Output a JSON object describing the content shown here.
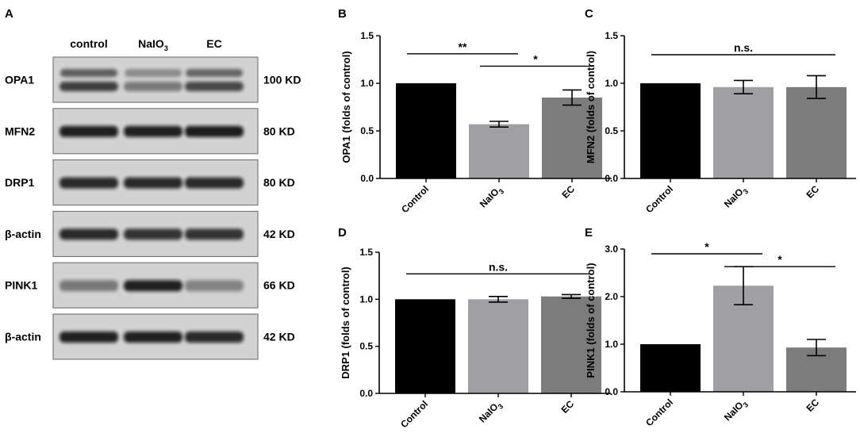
{
  "panels": {
    "A": {
      "label": "A",
      "lanes": [
        {
          "main": "control",
          "sub": ""
        },
        {
          "main": "NaIO",
          "sub": "3"
        },
        {
          "main": "EC",
          "sub": ""
        }
      ],
      "blots": [
        {
          "protein": "OPA1",
          "size": "100 KD",
          "style": "double",
          "intensity": [
            0.75,
            0.45,
            0.7
          ]
        },
        {
          "protein": "MFN2",
          "size": "80 KD",
          "style": "single",
          "intensity": [
            0.9,
            0.9,
            0.92
          ]
        },
        {
          "protein": "DRP1",
          "size": "80 KD",
          "style": "single",
          "intensity": [
            0.85,
            0.85,
            0.85
          ]
        },
        {
          "protein": "β-actin",
          "size": "42 KD",
          "style": "single",
          "intensity": [
            0.85,
            0.8,
            0.8
          ]
        },
        {
          "protein": "PINK1",
          "size": "66 KD",
          "style": "single",
          "intensity": [
            0.45,
            0.9,
            0.4
          ]
        },
        {
          "protein": "β-actin",
          "size": "42 KD",
          "style": "single",
          "intensity": [
            0.9,
            0.9,
            0.85
          ]
        }
      ]
    }
  },
  "colors": {
    "bars": [
      "#000000",
      "#a0a0a4",
      "#7c7c7c"
    ],
    "axis": "#000000"
  },
  "chart_data": [
    {
      "panel": "B",
      "type": "bar",
      "categories": [
        "Control",
        "NaIO3",
        "EC"
      ],
      "category_labels": [
        {
          "main": "Control",
          "sub": ""
        },
        {
          "main": "NaIO",
          "sub": "3"
        },
        {
          "main": "EC",
          "sub": ""
        }
      ],
      "values": [
        1.0,
        0.57,
        0.85
      ],
      "errors": [
        0,
        0.03,
        0.08
      ],
      "ylabel": "OPA1 (folds of control)",
      "ylim": [
        0,
        1.5
      ],
      "yticks": [
        "0.0",
        "0.5",
        "1.0",
        "1.5"
      ],
      "significance": [
        {
          "from": 0,
          "to": 1,
          "label": "**",
          "y": 1.31
        },
        {
          "from": 1,
          "to": 2,
          "label": "*",
          "y": 1.18
        }
      ]
    },
    {
      "panel": "C",
      "type": "bar",
      "categories": [
        "Control",
        "NaIO3",
        "EC"
      ],
      "category_labels": [
        {
          "main": "Control",
          "sub": ""
        },
        {
          "main": "NaIO",
          "sub": "3"
        },
        {
          "main": "EC",
          "sub": ""
        }
      ],
      "values": [
        1.0,
        0.96,
        0.96
      ],
      "errors": [
        0,
        0.07,
        0.12
      ],
      "ylabel": "MFN2 (folds of control)",
      "ylim": [
        0,
        1.5
      ],
      "yticks": [
        "0.0",
        "0.5",
        "1.0",
        "1.5"
      ],
      "significance": [
        {
          "from": 0,
          "to": 2,
          "label": "n.s.",
          "y": 1.3
        }
      ]
    },
    {
      "panel": "D",
      "type": "bar",
      "categories": [
        "Control",
        "NaIO3",
        "EC"
      ],
      "category_labels": [
        {
          "main": "Control",
          "sub": ""
        },
        {
          "main": "NaIO",
          "sub": "3"
        },
        {
          "main": "EC",
          "sub": ""
        }
      ],
      "values": [
        1.0,
        1.0,
        1.03
      ],
      "errors": [
        0,
        0.03,
        0.02
      ],
      "ylabel": "DRP1 (folds of control)",
      "ylim": [
        0,
        1.5
      ],
      "yticks": [
        "0.0",
        "0.5",
        "1.0",
        "1.5"
      ],
      "significance": [
        {
          "from": 0,
          "to": 2,
          "label": "n.s.",
          "y": 1.27
        }
      ]
    },
    {
      "panel": "E",
      "type": "bar",
      "categories": [
        "Control",
        "NaIO3",
        "EC"
      ],
      "category_labels": [
        {
          "main": "Control",
          "sub": ""
        },
        {
          "main": "NaIO",
          "sub": "3"
        },
        {
          "main": "EC",
          "sub": ""
        }
      ],
      "values": [
        1.0,
        2.23,
        0.93
      ],
      "errors": [
        0,
        0.4,
        0.17
      ],
      "ylabel": "PINK1 (folds of control)",
      "ylim": [
        0,
        3.0
      ],
      "yticks": [
        "0.0",
        "1.0",
        "2.0",
        "3.0"
      ],
      "significance": [
        {
          "from": 0,
          "to": 1,
          "label": "*",
          "y": 2.9
        },
        {
          "from": 1,
          "to": 2,
          "label": "*",
          "y": 2.63
        }
      ]
    }
  ]
}
